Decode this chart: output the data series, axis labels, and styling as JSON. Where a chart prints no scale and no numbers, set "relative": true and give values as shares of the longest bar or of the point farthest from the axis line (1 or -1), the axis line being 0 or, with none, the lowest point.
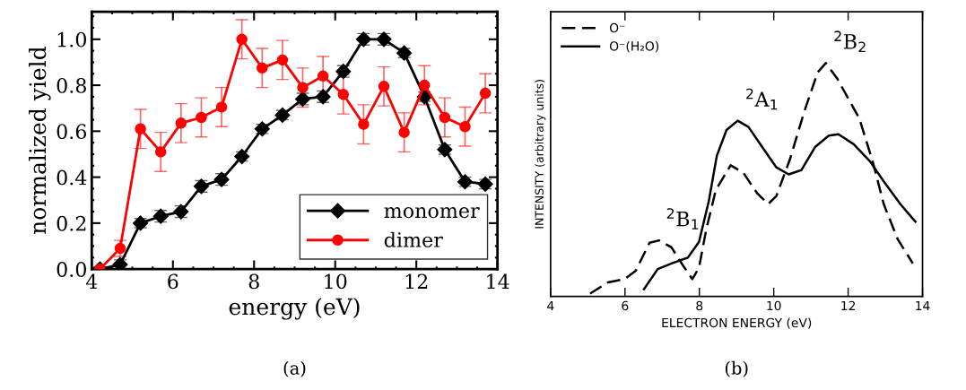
{
  "chart_data": [
    {
      "type": "line",
      "xlabel": "energy (eV)",
      "ylabel": "normalized yield",
      "xlim": [
        4,
        14
      ],
      "xticks": [
        4,
        6,
        8,
        10,
        12,
        14
      ],
      "ylim": [
        0,
        1.12
      ],
      "yticks": [
        {
          "value": 0,
          "label": "0.0"
        },
        {
          "value": 0.2,
          "label": "0.2"
        },
        {
          "value": 0.4,
          "label": "0.4"
        },
        {
          "value": 0.6,
          "label": "0.6"
        },
        {
          "value": 0.8,
          "label": "0.8"
        },
        {
          "value": 1.0,
          "label": "1.0"
        }
      ],
      "x": [
        4.2,
        4.7,
        5.2,
        5.7,
        6.2,
        6.7,
        7.2,
        7.7,
        8.2,
        8.7,
        9.2,
        9.7,
        10.2,
        10.7,
        11.2,
        11.7,
        12.2,
        12.7,
        13.2,
        13.7
      ],
      "series": [
        {
          "name": "monomer",
          "color": "#000000",
          "marker": "diamond",
          "values": [
            0,
            0.02,
            0.2,
            0.23,
            0.25,
            0.36,
            0.39,
            0.49,
            0.61,
            0.67,
            0.74,
            0.75,
            0.86,
            1.0,
            1.0,
            0.94,
            0.75,
            0.52,
            0.38,
            0.37
          ],
          "errors": [
            0.01,
            0.02,
            0.02,
            0.025,
            0.025,
            0.025,
            0.025,
            0.02,
            0.02,
            0.02,
            0.025,
            0.025,
            0.025,
            0.025,
            0.025,
            0.02,
            0.02,
            0.02,
            0.02,
            0.02
          ]
        },
        {
          "name": "dimer",
          "color": "#ff0000",
          "marker": "circle",
          "values": [
            0,
            0.09,
            0.61,
            0.51,
            0.635,
            0.66,
            0.705,
            1.0,
            0.875,
            0.91,
            0.79,
            0.84,
            0.76,
            0.63,
            0.795,
            0.595,
            0.8,
            0.66,
            0.62,
            0.765
          ],
          "errors": [
            0.01,
            0.035,
            0.085,
            0.085,
            0.085,
            0.085,
            0.085,
            0.085,
            0.085,
            0.085,
            0.085,
            0.085,
            0.085,
            0.085,
            0.085,
            0.085,
            0.085,
            0.085,
            0.085,
            0.085
          ]
        }
      ],
      "legend": "bottom right",
      "annotations": [
        "(a)"
      ]
    },
    {
      "type": "line",
      "relative": true,
      "xlabel": "ELECTRON ENERGY (eV)",
      "ylabel": "INTENSITY (arbitrary units)",
      "xlim": [
        4,
        14
      ],
      "xticks": [
        4,
        6,
        8,
        10,
        12,
        14
      ],
      "series": [
        {
          "name": "O⁻",
          "color": "#000000",
          "line_style": "dashed",
          "x": [
            5.06,
            5.54,
            5.99,
            6.29,
            6.66,
            6.92,
            7.25,
            7.55,
            7.81,
            7.99,
            8.18,
            8.44,
            8.84,
            9.18,
            9.55,
            9.85,
            10.07,
            10.44,
            10.81,
            11.18,
            11.4,
            11.7,
            12.0,
            12.3,
            12.66,
            12.96,
            13.33,
            13.74
          ],
          "values": [
            0.012,
            0.06,
            0.074,
            0.11,
            0.23,
            0.24,
            0.21,
            0.135,
            0.074,
            0.123,
            0.283,
            0.455,
            0.562,
            0.53,
            0.443,
            0.396,
            0.43,
            0.59,
            0.787,
            0.96,
            1,
            0.935,
            0.849,
            0.763,
            0.578,
            0.394,
            0.246,
            0.141
          ]
        },
        {
          "name": "O⁻(H₂O)",
          "color": "#000000",
          "line_style": "solid",
          "x": [
            6.51,
            6.88,
            7.25,
            7.69,
            7.99,
            8.25,
            8.47,
            8.73,
            9.03,
            9.32,
            9.69,
            10.07,
            10.4,
            10.74,
            11.11,
            11.48,
            11.74,
            12.15,
            12.59,
            12.96,
            13.41,
            13.81
          ],
          "values": [
            0.031,
            0.117,
            0.141,
            0.166,
            0.234,
            0.406,
            0.603,
            0.713,
            0.753,
            0.726,
            0.64,
            0.553,
            0.523,
            0.541,
            0.64,
            0.689,
            0.695,
            0.652,
            0.578,
            0.492,
            0.394,
            0.32
          ]
        }
      ],
      "legend": "top left",
      "annotations": [
        {
          "text": "$^{2}$B$_{1}$",
          "x": 6.9,
          "y": 0.24
        },
        {
          "text": "$^{2}$A$_{1}$",
          "x": 9.03,
          "y": 0.753
        },
        {
          "text": "$^{2}$B$_{2}$",
          "x": 11.4,
          "y": 1
        },
        "(b)"
      ]
    }
  ]
}
